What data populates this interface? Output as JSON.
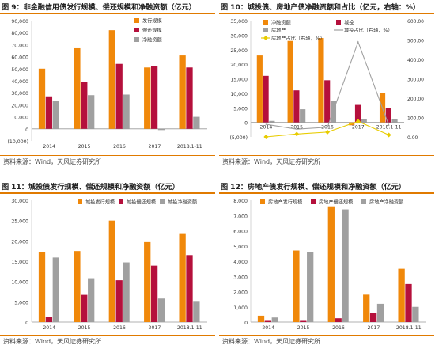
{
  "charts": [
    {
      "title": "图 9：非金融信用债发行规模、偿还规模和净融资额（亿元）",
      "source": "资料来源：Wind，天风证券研究所",
      "chart_data": {
        "type": "bar",
        "categories": [
          "2014",
          "2015",
          "2016",
          "2017",
          "2018.1-11"
        ],
        "series": [
          {
            "name": "发行规模",
            "color": "#f0880a",
            "values": [
              50000,
              67000,
              82000,
              51000,
              61000
            ]
          },
          {
            "name": "偿还规模",
            "color": "#b5103c",
            "values": [
              27000,
              39000,
              54000,
              52000,
              51000
            ]
          },
          {
            "name": "净融资额",
            "color": "#a0a0a0",
            "values": [
              23000,
              28000,
              28500,
              -1000,
              10000
            ]
          }
        ],
        "ylim": [
          -10000,
          90000
        ],
        "yticks": [
          -10000,
          0,
          10000,
          20000,
          30000,
          40000,
          50000,
          60000,
          70000,
          80000,
          90000
        ],
        "ytick_labels": [
          "(10,000)",
          "0",
          "10,000",
          "20,000",
          "30,000",
          "40,000",
          "50,000",
          "60,000",
          "70,000",
          "80,000",
          "90,000"
        ],
        "legend": "top-right"
      }
    },
    {
      "title": "图 10：城投债、房地产债净融资额和占比（亿元，右轴：%）",
      "source": "资料来源：Wind，天风证券研究所",
      "chart_data": {
        "type": "bar",
        "categories": [
          "2014",
          "2015",
          "2016",
          "2017",
          "2018.1-11"
        ],
        "series": [
          {
            "name": "净融资额",
            "color": "#f0880a",
            "values": [
              23000,
              28000,
              29000,
              -1000,
              10000
            ]
          },
          {
            "name": "城投",
            "color": "#b5103c",
            "values": [
              16000,
              11000,
              14500,
              6000,
              5000
            ]
          },
          {
            "name": "房地产",
            "color": "#a0a0a0",
            "values": [
              500,
              4500,
              7500,
              1000,
              1000
            ]
          }
        ],
        "line_series": [
          {
            "name": "城投占比（右轴，%）",
            "color": "#a0a0a0",
            "values": [
              65,
              40,
              50,
              490,
              60
            ]
          },
          {
            "name": "房地产占比（右轴，%）",
            "color": "#e8cc00",
            "values": [
              0,
              15,
              25,
              80,
              10
            ]
          }
        ],
        "ylim": [
          -5000,
          35000
        ],
        "yticks": [
          -5000,
          0,
          5000,
          10000,
          15000,
          20000,
          25000,
          30000,
          35000
        ],
        "ytick_labels": [
          "(5,000)",
          "0",
          "5,000",
          "10,000",
          "15,000",
          "20,000",
          "25,000",
          "30,000",
          "35,000"
        ],
        "y2lim": [
          0,
          600
        ],
        "y2ticks": [
          0,
          100,
          200,
          300,
          400,
          500,
          600
        ],
        "y2tick_labels": [
          "0.00",
          "100.00",
          "200.00",
          "300.00",
          "400.00",
          "500.00",
          "600.00"
        ],
        "legend": "top-left"
      }
    },
    {
      "title": "图 11：城投债发行规模、偿还规模和净融资额（亿元）",
      "source": "资料来源：Wind，天风证券研究所",
      "chart_data": {
        "type": "bar",
        "categories": [
          "2014",
          "2015",
          "2016",
          "2017",
          "2018.1-11"
        ],
        "series": [
          {
            "name": "城投发行规模",
            "color": "#f0880a",
            "values": [
              17200,
              17500,
              25000,
              19700,
              21700
            ]
          },
          {
            "name": "城投偿还规模",
            "color": "#b5103c",
            "values": [
              1300,
              6700,
              10300,
              13900,
              16500
            ]
          },
          {
            "name": "城投净融资额",
            "color": "#a0a0a0",
            "values": [
              15900,
              10800,
              14700,
              5800,
              5200
            ]
          }
        ],
        "ylim": [
          0,
          30000
        ],
        "yticks": [
          0,
          5000,
          10000,
          15000,
          20000,
          25000,
          30000
        ],
        "ytick_labels": [
          "0",
          "5,000",
          "10,000",
          "15,000",
          "20,000",
          "25,000",
          "30,000"
        ],
        "legend": "top-center"
      }
    },
    {
      "title": "图 12：房地产债发行规模、偿还规模和净融资额（亿元）",
      "source": "资料来源：Wind，天风证券研究所",
      "chart_data": {
        "type": "bar",
        "categories": [
          "2014",
          "2015",
          "2016",
          "2017",
          "2018.1-11"
        ],
        "series": [
          {
            "name": "房地产发行规模",
            "color": "#f0880a",
            "values": [
              420,
              4700,
              7600,
              1800,
              3500
            ]
          },
          {
            "name": "房地产偿还规模",
            "color": "#b5103c",
            "values": [
              130,
              130,
              250,
              600,
              2500
            ]
          },
          {
            "name": "房地产净融资额",
            "color": "#a0a0a0",
            "values": [
              300,
              4600,
              7400,
              1200,
              1000
            ]
          }
        ],
        "ylim": [
          0,
          8000
        ],
        "yticks": [
          0,
          1000,
          2000,
          3000,
          4000,
          5000,
          6000,
          7000,
          8000
        ],
        "ytick_labels": [
          "0",
          "1,000",
          "2,000",
          "3,000",
          "4,000",
          "5,000",
          "6,000",
          "7,000",
          "8,000"
        ],
        "legend": "top-center"
      }
    }
  ]
}
